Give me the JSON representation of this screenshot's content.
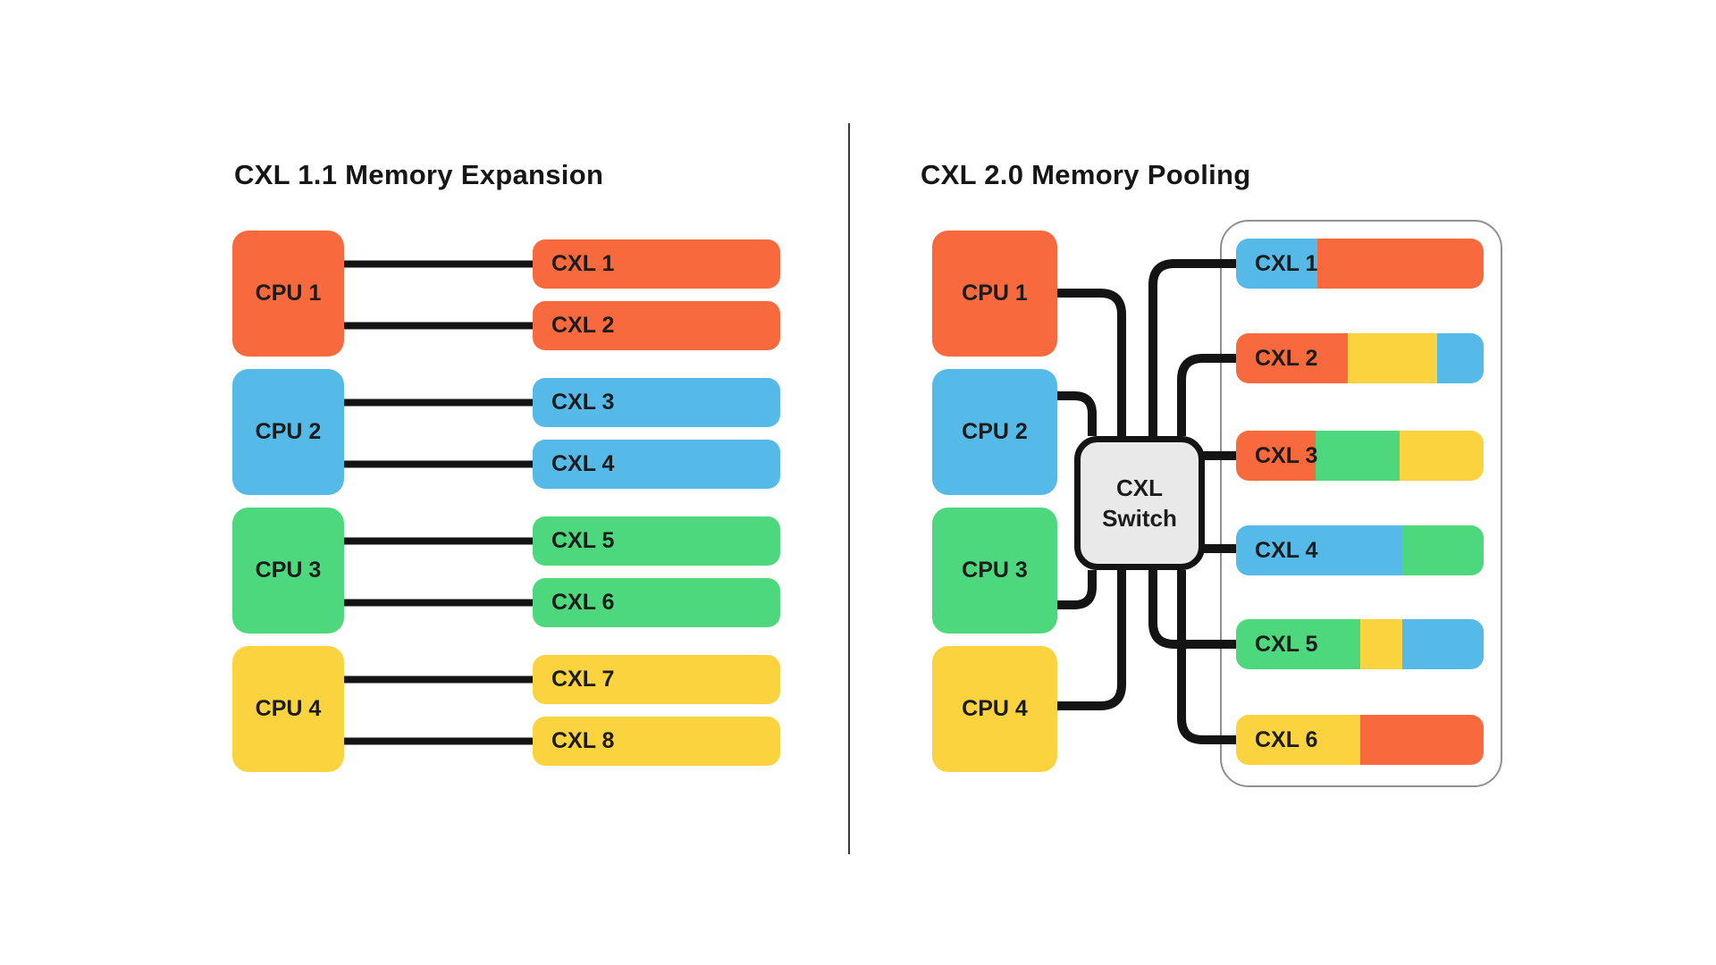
{
  "colors": {
    "orange": "#F8693E",
    "blue": "#56BAE8",
    "green": "#4DD87E",
    "yellow": "#FBD33F",
    "switch_fill": "#E9E9E9",
    "wire": "#141414",
    "container_border": "#909090",
    "divider": "#3A3A3A",
    "text": "#161616"
  },
  "left_panel": {
    "title": "CXL 1.1 Memory Expansion",
    "cpus": [
      {
        "label": "CPU 1",
        "color": "orange"
      },
      {
        "label": "CPU 2",
        "color": "blue"
      },
      {
        "label": "CPU 3",
        "color": "green"
      },
      {
        "label": "CPU 4",
        "color": "yellow"
      }
    ],
    "modules": [
      {
        "label": "CXL 1",
        "color": "orange"
      },
      {
        "label": "CXL 2",
        "color": "orange"
      },
      {
        "label": "CXL 3",
        "color": "blue"
      },
      {
        "label": "CXL 4",
        "color": "blue"
      },
      {
        "label": "CXL 5",
        "color": "green"
      },
      {
        "label": "CXL 6",
        "color": "green"
      },
      {
        "label": "CXL 7",
        "color": "yellow"
      },
      {
        "label": "CXL 8",
        "color": "yellow"
      }
    ]
  },
  "right_panel": {
    "title": "CXL 2.0 Memory Pooling",
    "cpus": [
      {
        "label": "CPU 1",
        "color": "orange"
      },
      {
        "label": "CPU 2",
        "color": "blue"
      },
      {
        "label": "CPU 3",
        "color": "green"
      },
      {
        "label": "CPU 4",
        "color": "yellow"
      }
    ],
    "switch": {
      "line1": "CXL",
      "line2": "Switch"
    },
    "modules": [
      {
        "label": "CXL 1",
        "segments": [
          {
            "color": "blue",
            "fraction": 0.33
          },
          {
            "color": "orange",
            "fraction": 0.67
          }
        ]
      },
      {
        "label": "CXL 2",
        "segments": [
          {
            "color": "orange",
            "fraction": 0.45
          },
          {
            "color": "yellow",
            "fraction": 0.36
          },
          {
            "color": "blue",
            "fraction": 0.19
          }
        ]
      },
      {
        "label": "CXL 3",
        "segments": [
          {
            "color": "orange",
            "fraction": 0.32
          },
          {
            "color": "green",
            "fraction": 0.34
          },
          {
            "color": "yellow",
            "fraction": 0.34
          }
        ]
      },
      {
        "label": "CXL 4",
        "segments": [
          {
            "color": "blue",
            "fraction": 0.67
          },
          {
            "color": "green",
            "fraction": 0.33
          }
        ]
      },
      {
        "label": "CXL 5",
        "segments": [
          {
            "color": "green",
            "fraction": 0.5
          },
          {
            "color": "yellow",
            "fraction": 0.17
          },
          {
            "color": "blue",
            "fraction": 0.33
          }
        ]
      },
      {
        "label": "CXL 6",
        "segments": [
          {
            "color": "yellow",
            "fraction": 0.5
          },
          {
            "color": "orange",
            "fraction": 0.5
          }
        ]
      }
    ]
  }
}
